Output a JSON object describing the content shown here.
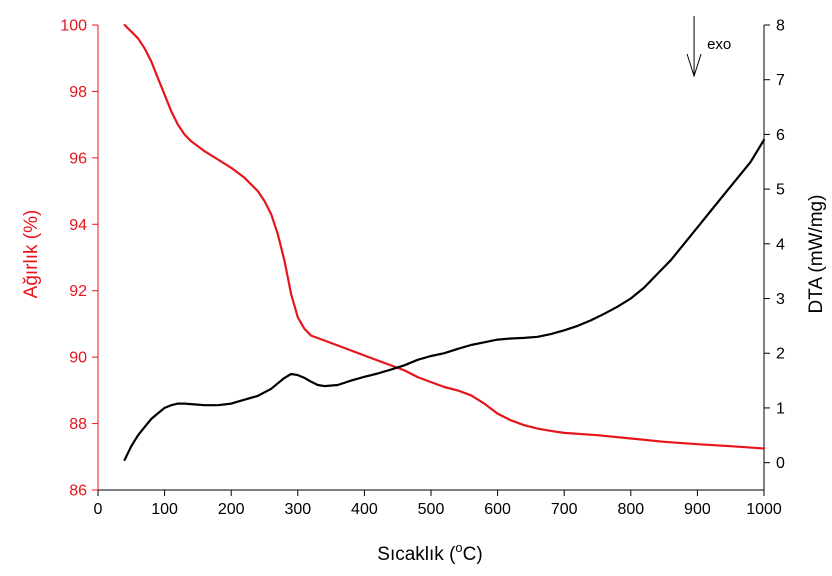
{
  "chart_data": {
    "type": "line",
    "x_axis": {
      "label": "Sıcaklık (",
      "label_sup": "o",
      "label_end": "C)",
      "range": [
        0,
        1000
      ],
      "ticks": [
        0,
        100,
        200,
        300,
        400,
        500,
        600,
        700,
        800,
        900,
        1000
      ]
    },
    "y_left": {
      "label": "Ağırlık (%)",
      "range": [
        86,
        100
      ],
      "ticks": [
        86,
        88,
        90,
        92,
        94,
        96,
        98,
        100
      ],
      "color": "#e8141c"
    },
    "y_right": {
      "label": "DTA (mW/mg)",
      "range": [
        -0.5,
        8
      ],
      "ticks": [
        0,
        1,
        2,
        3,
        4,
        5,
        6,
        7,
        8
      ],
      "color": "#000000"
    },
    "annotation": {
      "text": "exo",
      "arrow_x": 895,
      "arrow_direction": "down"
    },
    "grid": false,
    "legend": "none",
    "series": [
      {
        "axis": "left",
        "color": "#e8141c",
        "points": [
          [
            40,
            100.0
          ],
          [
            50,
            99.8
          ],
          [
            60,
            99.6
          ],
          [
            70,
            99.3
          ],
          [
            80,
            98.9
          ],
          [
            90,
            98.4
          ],
          [
            100,
            97.9
          ],
          [
            110,
            97.4
          ],
          [
            120,
            97.0
          ],
          [
            130,
            96.7
          ],
          [
            140,
            96.5
          ],
          [
            160,
            96.2
          ],
          [
            180,
            95.95
          ],
          [
            200,
            95.7
          ],
          [
            220,
            95.4
          ],
          [
            240,
            95.0
          ],
          [
            250,
            94.7
          ],
          [
            260,
            94.3
          ],
          [
            270,
            93.7
          ],
          [
            280,
            92.9
          ],
          [
            290,
            91.9
          ],
          [
            300,
            91.2
          ],
          [
            310,
            90.85
          ],
          [
            320,
            90.65
          ],
          [
            340,
            90.5
          ],
          [
            360,
            90.35
          ],
          [
            380,
            90.2
          ],
          [
            400,
            90.05
          ],
          [
            420,
            89.9
          ],
          [
            440,
            89.75
          ],
          [
            460,
            89.6
          ],
          [
            480,
            89.4
          ],
          [
            500,
            89.25
          ],
          [
            520,
            89.1
          ],
          [
            540,
            89.0
          ],
          [
            560,
            88.85
          ],
          [
            580,
            88.6
          ],
          [
            600,
            88.3
          ],
          [
            620,
            88.1
          ],
          [
            640,
            87.95
          ],
          [
            660,
            87.85
          ],
          [
            680,
            87.78
          ],
          [
            700,
            87.72
          ],
          [
            750,
            87.65
          ],
          [
            800,
            87.55
          ],
          [
            850,
            87.45
          ],
          [
            900,
            87.38
          ],
          [
            950,
            87.32
          ],
          [
            1000,
            87.25
          ]
        ]
      },
      {
        "axis": "right",
        "color": "#000000",
        "points": [
          [
            40,
            0.05
          ],
          [
            50,
            0.3
          ],
          [
            60,
            0.5
          ],
          [
            70,
            0.65
          ],
          [
            80,
            0.8
          ],
          [
            90,
            0.9
          ],
          [
            100,
            1.0
          ],
          [
            110,
            1.05
          ],
          [
            120,
            1.08
          ],
          [
            130,
            1.08
          ],
          [
            140,
            1.07
          ],
          [
            160,
            1.05
          ],
          [
            180,
            1.05
          ],
          [
            200,
            1.08
          ],
          [
            220,
            1.15
          ],
          [
            240,
            1.22
          ],
          [
            260,
            1.35
          ],
          [
            270,
            1.45
          ],
          [
            280,
            1.55
          ],
          [
            290,
            1.62
          ],
          [
            300,
            1.6
          ],
          [
            310,
            1.55
          ],
          [
            320,
            1.48
          ],
          [
            330,
            1.42
          ],
          [
            340,
            1.4
          ],
          [
            360,
            1.42
          ],
          [
            380,
            1.5
          ],
          [
            400,
            1.57
          ],
          [
            420,
            1.63
          ],
          [
            440,
            1.7
          ],
          [
            460,
            1.78
          ],
          [
            480,
            1.88
          ],
          [
            500,
            1.95
          ],
          [
            520,
            2.0
          ],
          [
            540,
            2.08
          ],
          [
            560,
            2.15
          ],
          [
            580,
            2.2
          ],
          [
            600,
            2.25
          ],
          [
            620,
            2.27
          ],
          [
            640,
            2.28
          ],
          [
            660,
            2.3
          ],
          [
            680,
            2.35
          ],
          [
            700,
            2.42
          ],
          [
            720,
            2.5
          ],
          [
            740,
            2.6
          ],
          [
            760,
            2.72
          ],
          [
            780,
            2.85
          ],
          [
            800,
            3.0
          ],
          [
            820,
            3.2
          ],
          [
            840,
            3.45
          ],
          [
            860,
            3.7
          ],
          [
            880,
            4.0
          ],
          [
            900,
            4.3
          ],
          [
            920,
            4.6
          ],
          [
            940,
            4.9
          ],
          [
            960,
            5.2
          ],
          [
            980,
            5.5
          ],
          [
            1000,
            5.9
          ]
        ]
      }
    ]
  }
}
